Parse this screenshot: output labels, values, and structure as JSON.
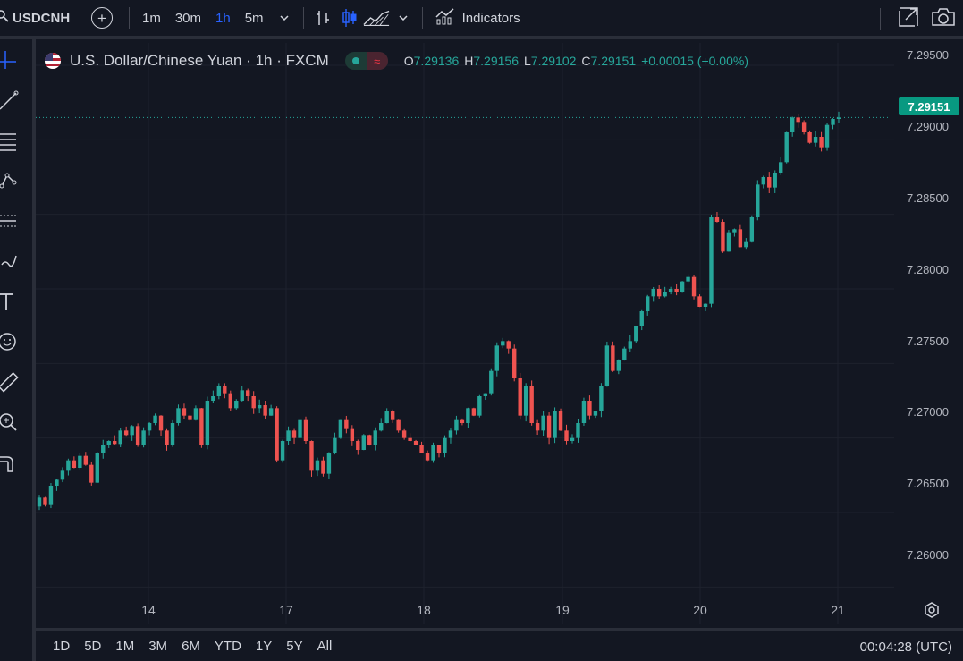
{
  "toolbar": {
    "symbol": "USDCNH",
    "intervals": [
      {
        "label": "1m",
        "active": false
      },
      {
        "label": "30m",
        "active": false
      },
      {
        "label": "1h",
        "active": true
      },
      {
        "label": "5m",
        "active": false
      }
    ],
    "indicators_label": "Indicators",
    "icons": [
      "search-icon",
      "add-symbol-icon",
      "chevron-down-icon",
      "bar-chart-icon",
      "candles-icon",
      "area-chart-icon",
      "indicators-icon",
      "fullscreen-icon",
      "camera-icon"
    ]
  },
  "left_tools": [
    "crosshair-icon",
    "trend-line-icon",
    "fib-icon",
    "pattern-icon",
    "projection-icon",
    "brush-icon",
    "text-icon",
    "emoji-icon",
    "ruler-icon",
    "zoom-icon",
    "magnet-icon"
  ],
  "legend": {
    "title": "U.S. Dollar/Chinese Yuan · 1h · FXCM",
    "wave": "≈",
    "o_key": "O",
    "o_val": "7.29136",
    "h_key": "H",
    "h_val": "7.29156",
    "l_key": "L",
    "l_val": "7.29102",
    "c_key": "C",
    "c_val": "7.29151",
    "change": "+0.00015 (+0.00%)"
  },
  "price_axis": {
    "labels": [
      "7.29500",
      "7.29000",
      "7.28500",
      "7.28000",
      "7.27500",
      "7.27000",
      "7.26500",
      "7.26000"
    ],
    "last_price": "7.29151"
  },
  "time_axis": {
    "labels": [
      "14",
      "17",
      "18",
      "19",
      "20",
      "21"
    ]
  },
  "bottom": {
    "ranges": [
      "1D",
      "5D",
      "1M",
      "3M",
      "6M",
      "YTD",
      "1Y",
      "5Y",
      "All"
    ],
    "clock": "00:04:28 (UTC)"
  },
  "colors": {
    "up": "#26a69a",
    "down": "#ef5350",
    "bg": "#131722",
    "grid": "#1f2330",
    "accent": "#2962ff"
  },
  "chart_data": {
    "type": "candlestick",
    "ylim": [
      7.2575,
      7.2965
    ],
    "closes": [
      7.266,
      7.2655,
      7.2668,
      7.2672,
      7.2678,
      7.2685,
      7.268,
      7.2688,
      7.2682,
      7.267,
      7.269,
      7.2695,
      7.2698,
      7.2696,
      7.2705,
      7.2702,
      7.2708,
      7.2695,
      7.2705,
      7.271,
      7.2715,
      7.2705,
      7.2695,
      7.271,
      7.272,
      7.2715,
      7.2712,
      7.272,
      7.2695,
      7.2725,
      7.2728,
      7.2735,
      7.273,
      7.272,
      7.2725,
      7.2732,
      7.2728,
      7.272,
      7.2722,
      7.2715,
      7.272,
      7.2685,
      7.2698,
      7.2705,
      7.27,
      7.2712,
      7.2698,
      7.2678,
      7.2685,
      7.2676,
      7.269,
      7.27,
      7.2712,
      7.2706,
      7.2698,
      7.2692,
      7.2702,
      7.2695,
      7.2705,
      7.271,
      7.2718,
      7.2712,
      7.2705,
      7.27,
      7.2698,
      7.2695,
      7.269,
      7.2685,
      7.2695,
      7.269,
      7.27,
      7.2705,
      7.2712,
      7.271,
      7.272,
      7.2715,
      7.2728,
      7.273,
      7.2745,
      7.2762,
      7.2765,
      7.276,
      7.274,
      7.2715,
      7.2735,
      7.271,
      7.2705,
      7.2715,
      7.27,
      7.2718,
      7.2705,
      7.2698,
      7.27,
      7.271,
      7.2725,
      7.2715,
      7.2718,
      7.2735,
      7.2762,
      7.2745,
      7.2752,
      7.276,
      7.2765,
      7.2775,
      7.2785,
      7.2795,
      7.28,
      7.2795,
      7.2798,
      7.28,
      7.2798,
      7.2805,
      7.2808,
      7.2795,
      7.2788,
      7.279,
      7.2848,
      7.2845,
      7.2825,
      7.2838,
      7.284,
      7.2828,
      7.2832,
      7.2848,
      7.287,
      7.2875,
      7.2868,
      7.2878,
      7.2885,
      7.2905,
      7.2915,
      7.2912,
      7.2905,
      7.2898,
      7.2902,
      7.2895,
      7.291,
      7.2914,
      7.2915
    ]
  }
}
